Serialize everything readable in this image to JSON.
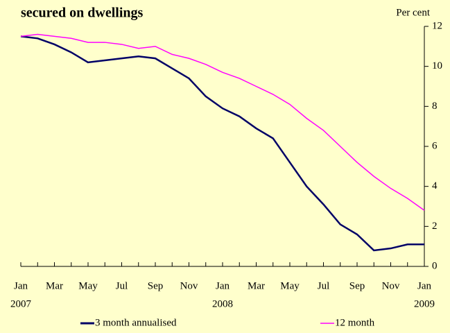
{
  "chart_data": {
    "type": "line",
    "title": "secured on dwellings",
    "y_axis_label": "Per cent",
    "categories": [
      "Jan",
      null,
      "Mar",
      null,
      "May",
      null,
      "Jul",
      null,
      "Sep",
      null,
      "Nov",
      null,
      "Jan",
      null,
      "Mar",
      null,
      "May",
      null,
      "Jul",
      null,
      "Sep",
      null,
      "Nov",
      null,
      "Jan"
    ],
    "years": [
      "2007",
      null,
      null,
      null,
      null,
      null,
      null,
      null,
      null,
      null,
      null,
      null,
      "2008",
      null,
      null,
      null,
      null,
      null,
      null,
      null,
      null,
      null,
      null,
      null,
      "2009"
    ],
    "series": [
      {
        "name": "3 month annualised",
        "color": "#000066",
        "values": [
          11.5,
          11.4,
          11.1,
          10.7,
          10.2,
          10.3,
          10.4,
          10.5,
          10.4,
          9.9,
          9.4,
          8.5,
          7.9,
          7.5,
          6.9,
          6.4,
          5.2,
          4.0,
          3.1,
          2.1,
          1.6,
          0.8,
          0.9,
          1.1,
          1.1
        ]
      },
      {
        "name": "12 month",
        "color": "#ff00ff",
        "values": [
          11.5,
          11.6,
          11.5,
          11.4,
          11.2,
          11.2,
          11.1,
          10.9,
          11.0,
          10.6,
          10.4,
          10.1,
          9.7,
          9.4,
          9.0,
          8.6,
          8.1,
          7.4,
          6.8,
          6.0,
          5.2,
          4.5,
          3.9,
          3.4,
          2.8
        ]
      }
    ],
    "ylim": [
      0,
      12
    ],
    "yticks": [
      0,
      2,
      4,
      6,
      8,
      10,
      12
    ],
    "y_axis_side": "right"
  }
}
